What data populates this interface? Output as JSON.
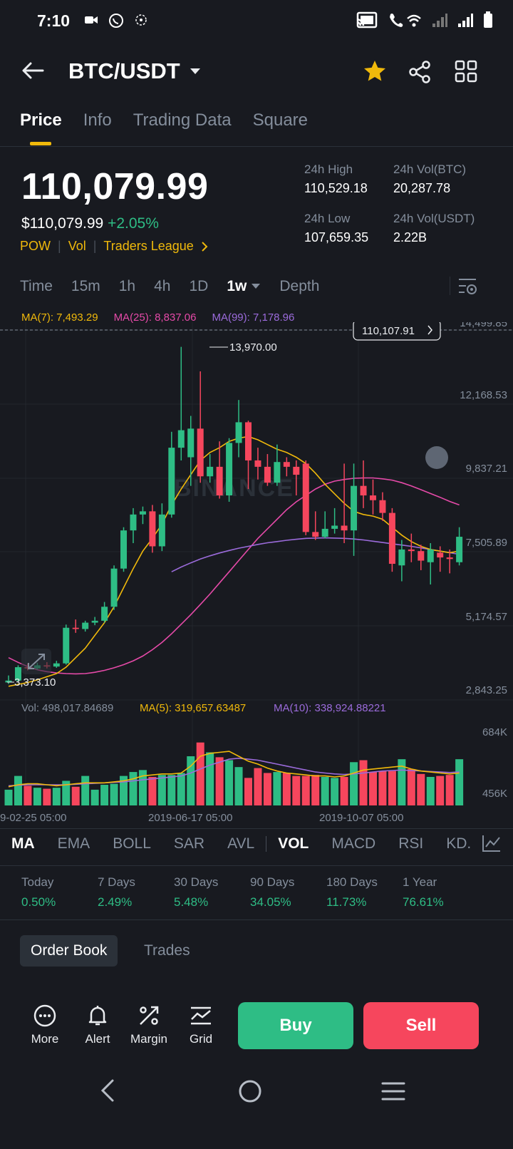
{
  "status_bar": {
    "time": "7:10"
  },
  "header": {
    "pair": "BTC/USDT"
  },
  "tabs": [
    {
      "label": "Price",
      "active": true
    },
    {
      "label": "Info"
    },
    {
      "label": "Trading Data"
    },
    {
      "label": "Square"
    }
  ],
  "price": {
    "last": "110,079.99",
    "usd": "$110,079.99",
    "change": "+2.05%",
    "tags": [
      "POW",
      "Vol",
      "Traders League"
    ],
    "high_label": "24h High",
    "high": "110,529.18",
    "low_label": "24h Low",
    "low": "107,659.35",
    "vol_btc_label": "24h Vol(BTC)",
    "vol_btc": "20,287.78",
    "vol_usdt_label": "24h Vol(USDT)",
    "vol_usdt": "2.22B"
  },
  "timeframes": [
    "Time",
    "15m",
    "1h",
    "4h",
    "1D",
    "1w",
    "Depth"
  ],
  "active_timeframe": "1w",
  "ma_legend": {
    "ma7": "MA(7): 7,493.29",
    "ma25": "MA(25): 8,837.06",
    "ma99": "MA(99): 7,178.96"
  },
  "vol_legend": {
    "vol": "Vol: 498,017.84689",
    "ma5": "MA(5): 319,657.63487",
    "ma10": "MA(10): 338,924.88221"
  },
  "chart": {
    "current_price_tag": "110,107.91",
    "price_axis": [
      "14,499.85",
      "12,168.53",
      "9,837.21",
      "7,505.89",
      "5,174.57",
      "2,843.25"
    ],
    "high_label": "13,970.00",
    "low_label": "3,373.10",
    "volume_axis": [
      "684K",
      "456K"
    ],
    "date_axis": [
      "9-02-25 05:00",
      "2019-06-17 05:00",
      "2019-10-07 05:00"
    ],
    "watermark": "BINANCE"
  },
  "chart_data": {
    "type": "candlestick",
    "candles": [
      {
        "o": 3420,
        "c": 3480,
        "h": 3640,
        "l": 3373
      },
      {
        "o": 3480,
        "c": 3900,
        "h": 3960,
        "l": 3440
      },
      {
        "o": 3900,
        "c": 3860,
        "h": 4020,
        "l": 3800
      },
      {
        "o": 3860,
        "c": 3960,
        "h": 4040,
        "l": 3820
      },
      {
        "o": 3960,
        "c": 3920,
        "h": 4060,
        "l": 3860
      },
      {
        "o": 3920,
        "c": 4020,
        "h": 4100,
        "l": 3880
      },
      {
        "o": 4020,
        "c": 5140,
        "h": 5240,
        "l": 3980
      },
      {
        "o": 5140,
        "c": 5100,
        "h": 5400,
        "l": 4980
      },
      {
        "o": 5100,
        "c": 5300,
        "h": 5360,
        "l": 5020
      },
      {
        "o": 5300,
        "c": 5360,
        "h": 5480,
        "l": 5220
      },
      {
        "o": 5360,
        "c": 5800,
        "h": 5950,
        "l": 5300
      },
      {
        "o": 5800,
        "c": 7000,
        "h": 7100,
        "l": 5700
      },
      {
        "o": 7000,
        "c": 8200,
        "h": 8300,
        "l": 6900
      },
      {
        "o": 8200,
        "c": 8700,
        "h": 8900,
        "l": 7800
      },
      {
        "o": 8700,
        "c": 8800,
        "h": 8950,
        "l": 8400
      },
      {
        "o": 8800,
        "c": 7700,
        "h": 9000,
        "l": 7500
      },
      {
        "o": 7700,
        "c": 8700,
        "h": 9050,
        "l": 7550
      },
      {
        "o": 8700,
        "c": 10800,
        "h": 11300,
        "l": 8600
      },
      {
        "o": 10800,
        "c": 11350,
        "h": 13970,
        "l": 10400
      },
      {
        "o": 10500,
        "c": 11400,
        "h": 11800,
        "l": 9600
      },
      {
        "o": 11400,
        "c": 9900,
        "h": 13200,
        "l": 9700
      },
      {
        "o": 9900,
        "c": 10200,
        "h": 10600,
        "l": 9700
      },
      {
        "o": 10200,
        "c": 9300,
        "h": 11000,
        "l": 9200
      },
      {
        "o": 9300,
        "c": 10950,
        "h": 11100,
        "l": 9100
      },
      {
        "o": 10950,
        "c": 11600,
        "h": 12300,
        "l": 10500
      },
      {
        "o": 11600,
        "c": 10400,
        "h": 11650,
        "l": 9500
      },
      {
        "o": 10400,
        "c": 10200,
        "h": 10800,
        "l": 9800
      },
      {
        "o": 10200,
        "c": 9700,
        "h": 10600,
        "l": 9600
      },
      {
        "o": 9700,
        "c": 10350,
        "h": 10900,
        "l": 9600
      },
      {
        "o": 10350,
        "c": 10200,
        "h": 10500,
        "l": 9900
      },
      {
        "o": 10200,
        "c": 9950,
        "h": 10400,
        "l": 9300
      },
      {
        "o": 10300,
        "c": 8150,
        "h": 10400,
        "l": 8050
      },
      {
        "o": 8150,
        "c": 8000,
        "h": 8800,
        "l": 7900
      },
      {
        "o": 8000,
        "c": 8250,
        "h": 8800,
        "l": 7950
      },
      {
        "o": 8250,
        "c": 8350,
        "h": 8900,
        "l": 8100
      },
      {
        "o": 8350,
        "c": 8200,
        "h": 10300,
        "l": 7800
      },
      {
        "o": 8200,
        "c": 9600,
        "h": 10300,
        "l": 7400
      },
      {
        "o": 9600,
        "c": 9300,
        "h": 10400,
        "l": 8900
      },
      {
        "o": 9300,
        "c": 9150,
        "h": 9800,
        "l": 8700
      },
      {
        "o": 9150,
        "c": 8750,
        "h": 9400,
        "l": 8500
      },
      {
        "o": 8750,
        "c": 7150,
        "h": 8900,
        "l": 6900
      },
      {
        "o": 7100,
        "c": 7600,
        "h": 7900,
        "l": 6600
      },
      {
        "o": 7600,
        "c": 7550,
        "h": 8100,
        "l": 7200
      },
      {
        "o": 7550,
        "c": 7250,
        "h": 7750,
        "l": 6950
      },
      {
        "o": 7200,
        "c": 7600,
        "h": 7800,
        "l": 6500
      },
      {
        "o": 7500,
        "c": 7350,
        "h": 7700,
        "l": 6900
      },
      {
        "o": 7350,
        "c": 7300,
        "h": 7600,
        "l": 6850
      },
      {
        "o": 7200,
        "c": 8000,
        "h": 8300,
        "l": 7100
      }
    ],
    "ma7": [
      3300,
      3360,
      3420,
      3500,
      3600,
      3700,
      3900,
      4200,
      4500,
      4900,
      5300,
      5800,
      6400,
      7000,
      7550,
      7950,
      8400,
      9000,
      9500,
      9950,
      10400,
      10650,
      10800,
      11000,
      11100,
      11150,
      11050,
      10900,
      10750,
      10650,
      10500,
      10300,
      10000,
      9650,
      9350,
      9050,
      8800,
      8700,
      8650,
      8550,
      8300,
      8050,
      7850,
      7700,
      7600,
      7550,
      7500,
      7550
    ],
    "ma25": [
      4200,
      4050,
      3920,
      3820,
      3760,
      3720,
      3700,
      3690,
      3700,
      3740,
      3800,
      3880,
      3980,
      4100,
      4250,
      4450,
      4680,
      4950,
      5250,
      5550,
      5870,
      6200,
      6550,
      6900,
      7250,
      7600,
      7950,
      8250,
      8550,
      8850,
      9100,
      9300,
      9500,
      9650,
      9750,
      9800,
      9840,
      9850,
      9850,
      9820,
      9780,
      9700,
      9600,
      9480,
      9360,
      9240,
      9110,
      9000
    ],
    "ma99": {
      "start_index": 17,
      "values": [
        6900,
        7050,
        7180,
        7300,
        7400,
        7490,
        7570,
        7640,
        7700,
        7760,
        7810,
        7850,
        7890,
        7920,
        7950,
        7960,
        7965,
        7960,
        7950,
        7930,
        7900,
        7860,
        7820,
        7780,
        7740,
        7700,
        7650,
        7600,
        7550,
        7500,
        7450
      ]
    },
    "volume": [
      160,
      300,
      200,
      180,
      170,
      180,
      250,
      190,
      300,
      160,
      210,
      220,
      300,
      340,
      360,
      290,
      310,
      310,
      330,
      500,
      640,
      540,
      490,
      460,
      390,
      280,
      380,
      330,
      340,
      330,
      300,
      300,
      310,
      290,
      280,
      290,
      440,
      460,
      340,
      350,
      350,
      470,
      370,
      320,
      290,
      300,
      310,
      470
    ],
    "volume_ma5": [
      190,
      210,
      220,
      220,
      210,
      200,
      210,
      220,
      230,
      230,
      230,
      240,
      250,
      270,
      300,
      310,
      320,
      320,
      330,
      400,
      500,
      530,
      540,
      550,
      500,
      450,
      420,
      380,
      350,
      330,
      320,
      310,
      300,
      300,
      290,
      300,
      330,
      360,
      370,
      380,
      390,
      400,
      370,
      350,
      340,
      330,
      320,
      330
    ],
    "volume_ma10": [
      200,
      205,
      210,
      210,
      210,
      210,
      210,
      215,
      220,
      225,
      230,
      235,
      240,
      250,
      260,
      270,
      280,
      290,
      300,
      330,
      370,
      410,
      440,
      470,
      480,
      470,
      460,
      440,
      420,
      400,
      380,
      360,
      340,
      330,
      320,
      315,
      320,
      330,
      340,
      350,
      355,
      360,
      355,
      350,
      345,
      340,
      335,
      340
    ]
  },
  "indicators": [
    "MA",
    "EMA",
    "BOLL",
    "SAR",
    "AVL",
    "VOL",
    "MACD",
    "RSI",
    "KD."
  ],
  "performance": [
    {
      "label": "Today",
      "value": "0.50%"
    },
    {
      "label": "7 Days",
      "value": "2.49%"
    },
    {
      "label": "30 Days",
      "value": "5.48%"
    },
    {
      "label": "90 Days",
      "value": "34.05%"
    },
    {
      "label": "180 Days",
      "value": "11.73%"
    },
    {
      "label": "1 Year",
      "value": "76.61%"
    }
  ],
  "book_tabs": {
    "order_book": "Order Book",
    "trades": "Trades"
  },
  "bottom_bar": {
    "more": "More",
    "alert": "Alert",
    "margin": "Margin",
    "grid": "Grid",
    "buy": "Buy",
    "sell": "Sell"
  },
  "colors": {
    "bg": "#181A20",
    "up": "#2EBD85",
    "down": "#F6465D",
    "accent": "#F0B90B",
    "ma7": "#F0B90B",
    "ma25": "#E54AA8",
    "ma99": "#9B6BDB",
    "muted": "#848E9C"
  }
}
